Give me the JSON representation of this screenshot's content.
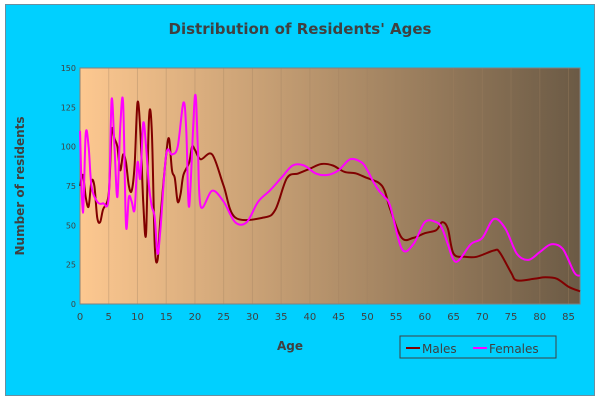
{
  "colors": {
    "background": "#00d0ff",
    "plot_left": "#fdc890",
    "plot_right": "#6b5a45",
    "males": "#800000",
    "females": "#ff00ff",
    "text": "#404040"
  },
  "chart_data": {
    "type": "line",
    "title": "Distribution of Residents' Ages",
    "xlabel": "Age",
    "ylabel": "Number of residents",
    "xlim": [
      0,
      87
    ],
    "ylim": [
      0,
      150
    ],
    "x_ticks": [
      0,
      5,
      10,
      15,
      20,
      25,
      30,
      35,
      40,
      45,
      50,
      55,
      60,
      65,
      70,
      75,
      80,
      85
    ],
    "y_ticks": [
      0,
      25,
      50,
      75,
      100,
      125,
      150
    ],
    "grid": true,
    "legend_position": "bottom-right",
    "series": [
      {
        "name": "Males",
        "color": "#800000",
        "points": [
          [
            0,
            75
          ],
          [
            0.5,
            82
          ],
          [
            1,
            68
          ],
          [
            1.5,
            62
          ],
          [
            2,
            78
          ],
          [
            2.5,
            75
          ],
          [
            3,
            55
          ],
          [
            3.5,
            52
          ],
          [
            4,
            60
          ],
          [
            5,
            70
          ],
          [
            5.5,
            110
          ],
          [
            6,
            105
          ],
          [
            6.5,
            100
          ],
          [
            7,
            85
          ],
          [
            7.5,
            95
          ],
          [
            8,
            90
          ],
          [
            8.5,
            75
          ],
          [
            9,
            72
          ],
          [
            9.5,
            88
          ],
          [
            10,
            128
          ],
          [
            10.5,
            110
          ],
          [
            11,
            65
          ],
          [
            11.5,
            45
          ],
          [
            12,
            118
          ],
          [
            12.5,
            110
          ],
          [
            13,
            38
          ],
          [
            13.5,
            28
          ],
          [
            14,
            55
          ],
          [
            15,
            95
          ],
          [
            15.5,
            105
          ],
          [
            16,
            85
          ],
          [
            16.5,
            80
          ],
          [
            17,
            65
          ],
          [
            17.5,
            70
          ],
          [
            18,
            82
          ],
          [
            19,
            90
          ],
          [
            19.5,
            100
          ],
          [
            20,
            98
          ],
          [
            21,
            92
          ],
          [
            23,
            95
          ],
          [
            25,
            75
          ],
          [
            27,
            55
          ],
          [
            32,
            55
          ],
          [
            34,
            60
          ],
          [
            36,
            80
          ],
          [
            38,
            83
          ],
          [
            40,
            86
          ],
          [
            42,
            89
          ],
          [
            44,
            88
          ],
          [
            46,
            84
          ],
          [
            48,
            83
          ],
          [
            50,
            80
          ],
          [
            52,
            77
          ],
          [
            53,
            72
          ],
          [
            54,
            60
          ],
          [
            56,
            42
          ],
          [
            58,
            42
          ],
          [
            60,
            45
          ],
          [
            62,
            47
          ],
          [
            63,
            52
          ],
          [
            64,
            48
          ],
          [
            65,
            32
          ],
          [
            67,
            30
          ],
          [
            69,
            30
          ],
          [
            72,
            34
          ],
          [
            73,
            33
          ],
          [
            75,
            20
          ],
          [
            76,
            15
          ],
          [
            79,
            16
          ],
          [
            81,
            17
          ],
          [
            83,
            16
          ],
          [
            85,
            11
          ],
          [
            87,
            8
          ]
        ]
      },
      {
        "name": "Females",
        "color": "#ff00ff",
        "points": [
          [
            0,
            110
          ],
          [
            0.5,
            58
          ],
          [
            1,
            108
          ],
          [
            1.5,
            100
          ],
          [
            2,
            75
          ],
          [
            3,
            65
          ],
          [
            4,
            64
          ],
          [
            5,
            68
          ],
          [
            5.5,
            130
          ],
          [
            6,
            100
          ],
          [
            6.5,
            68
          ],
          [
            7,
            112
          ],
          [
            7.5,
            128
          ],
          [
            8,
            50
          ],
          [
            8.5,
            68
          ],
          [
            9,
            65
          ],
          [
            9.5,
            60
          ],
          [
            10,
            90
          ],
          [
            10.5,
            80
          ],
          [
            11,
            115
          ],
          [
            11.5,
            100
          ],
          [
            12,
            75
          ],
          [
            12.5,
            62
          ],
          [
            13,
            55
          ],
          [
            13.5,
            32
          ],
          [
            14,
            48
          ],
          [
            15,
            95
          ],
          [
            16,
            95
          ],
          [
            17,
            100
          ],
          [
            18,
            128
          ],
          [
            18.5,
            110
          ],
          [
            19,
            62
          ],
          [
            20,
            132
          ],
          [
            20.5,
            100
          ],
          [
            21,
            62
          ],
          [
            23,
            72
          ],
          [
            25,
            65
          ],
          [
            27,
            52
          ],
          [
            29,
            52
          ],
          [
            31,
            65
          ],
          [
            33,
            72
          ],
          [
            35,
            80
          ],
          [
            37,
            88
          ],
          [
            39,
            88
          ],
          [
            41,
            83
          ],
          [
            43,
            82
          ],
          [
            45,
            85
          ],
          [
            47,
            92
          ],
          [
            49,
            90
          ],
          [
            50,
            85
          ],
          [
            51,
            78
          ],
          [
            52,
            72
          ],
          [
            53,
            68
          ],
          [
            54,
            62
          ],
          [
            56,
            35
          ],
          [
            58,
            38
          ],
          [
            60,
            52
          ],
          [
            62,
            52
          ],
          [
            63,
            48
          ],
          [
            64,
            38
          ],
          [
            65,
            28
          ],
          [
            66,
            28
          ],
          [
            68,
            38
          ],
          [
            70,
            42
          ],
          [
            72,
            54
          ],
          [
            74,
            48
          ],
          [
            76,
            32
          ],
          [
            78,
            28
          ],
          [
            80,
            33
          ],
          [
            82,
            38
          ],
          [
            84,
            35
          ],
          [
            86,
            20
          ],
          [
            87,
            18
          ]
        ]
      }
    ]
  }
}
